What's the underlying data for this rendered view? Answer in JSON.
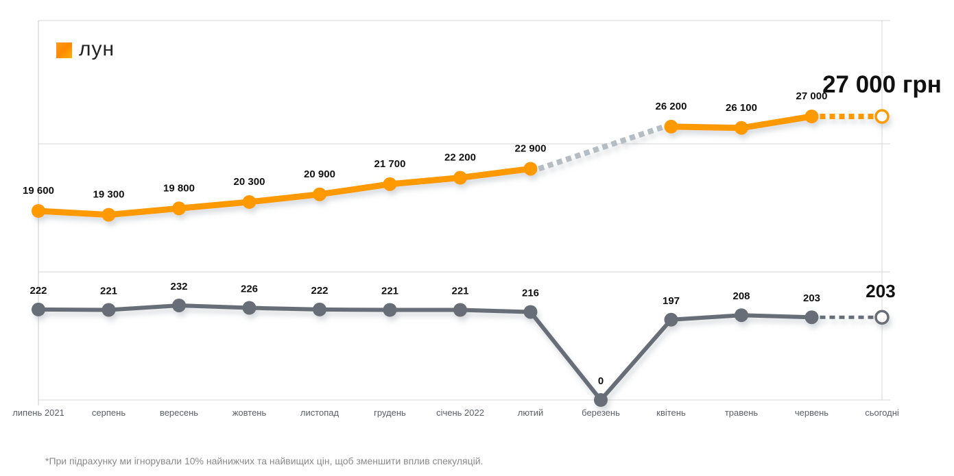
{
  "brand": {
    "name": "лун",
    "accent_color": "#FF9900"
  },
  "footnote": "*При підрахунку ми ігнорували 10% найнижчих та найвищих цін, щоб зменшити вплив спекуляцій.",
  "chart_data": {
    "type": "line",
    "title": "",
    "xlabel": "",
    "ylabel": "",
    "grid": true,
    "legend": "none",
    "categories": [
      "липень 2021",
      "серпень",
      "вересень",
      "жовтень",
      "листопад",
      "грудень",
      "січень 2022",
      "лютий",
      "березень",
      "квітень",
      "травень",
      "червень",
      "сьогодні"
    ],
    "series": [
      {
        "name": "price",
        "unit": "грн",
        "color": "#FF9900",
        "gap_color": "#B4BCC4",
        "values": [
          19600,
          19300,
          19800,
          20300,
          20900,
          21700,
          22200,
          22900,
          null,
          26200,
          26100,
          27000,
          27000
        ],
        "labels": [
          "19 600",
          "19 300",
          "19 800",
          "20 300",
          "20 900",
          "21 700",
          "22 200",
          "22 900",
          "",
          "26 200",
          "26 100",
          "27 000",
          ""
        ],
        "current_label": "27 000 грн",
        "dashed_segments": [
          [
            7,
            9
          ],
          [
            11,
            12
          ]
        ]
      },
      {
        "name": "count",
        "unit": "",
        "color": "#676E77",
        "values": [
          222,
          221,
          232,
          226,
          222,
          221,
          221,
          216,
          0,
          197,
          208,
          203,
          203
        ],
        "labels": [
          "222",
          "221",
          "232",
          "226",
          "222",
          "221",
          "221",
          "216",
          "0",
          "197",
          "208",
          "203",
          ""
        ],
        "current_label": "203",
        "dashed_segments": [
          [
            11,
            12
          ]
        ]
      }
    ]
  }
}
